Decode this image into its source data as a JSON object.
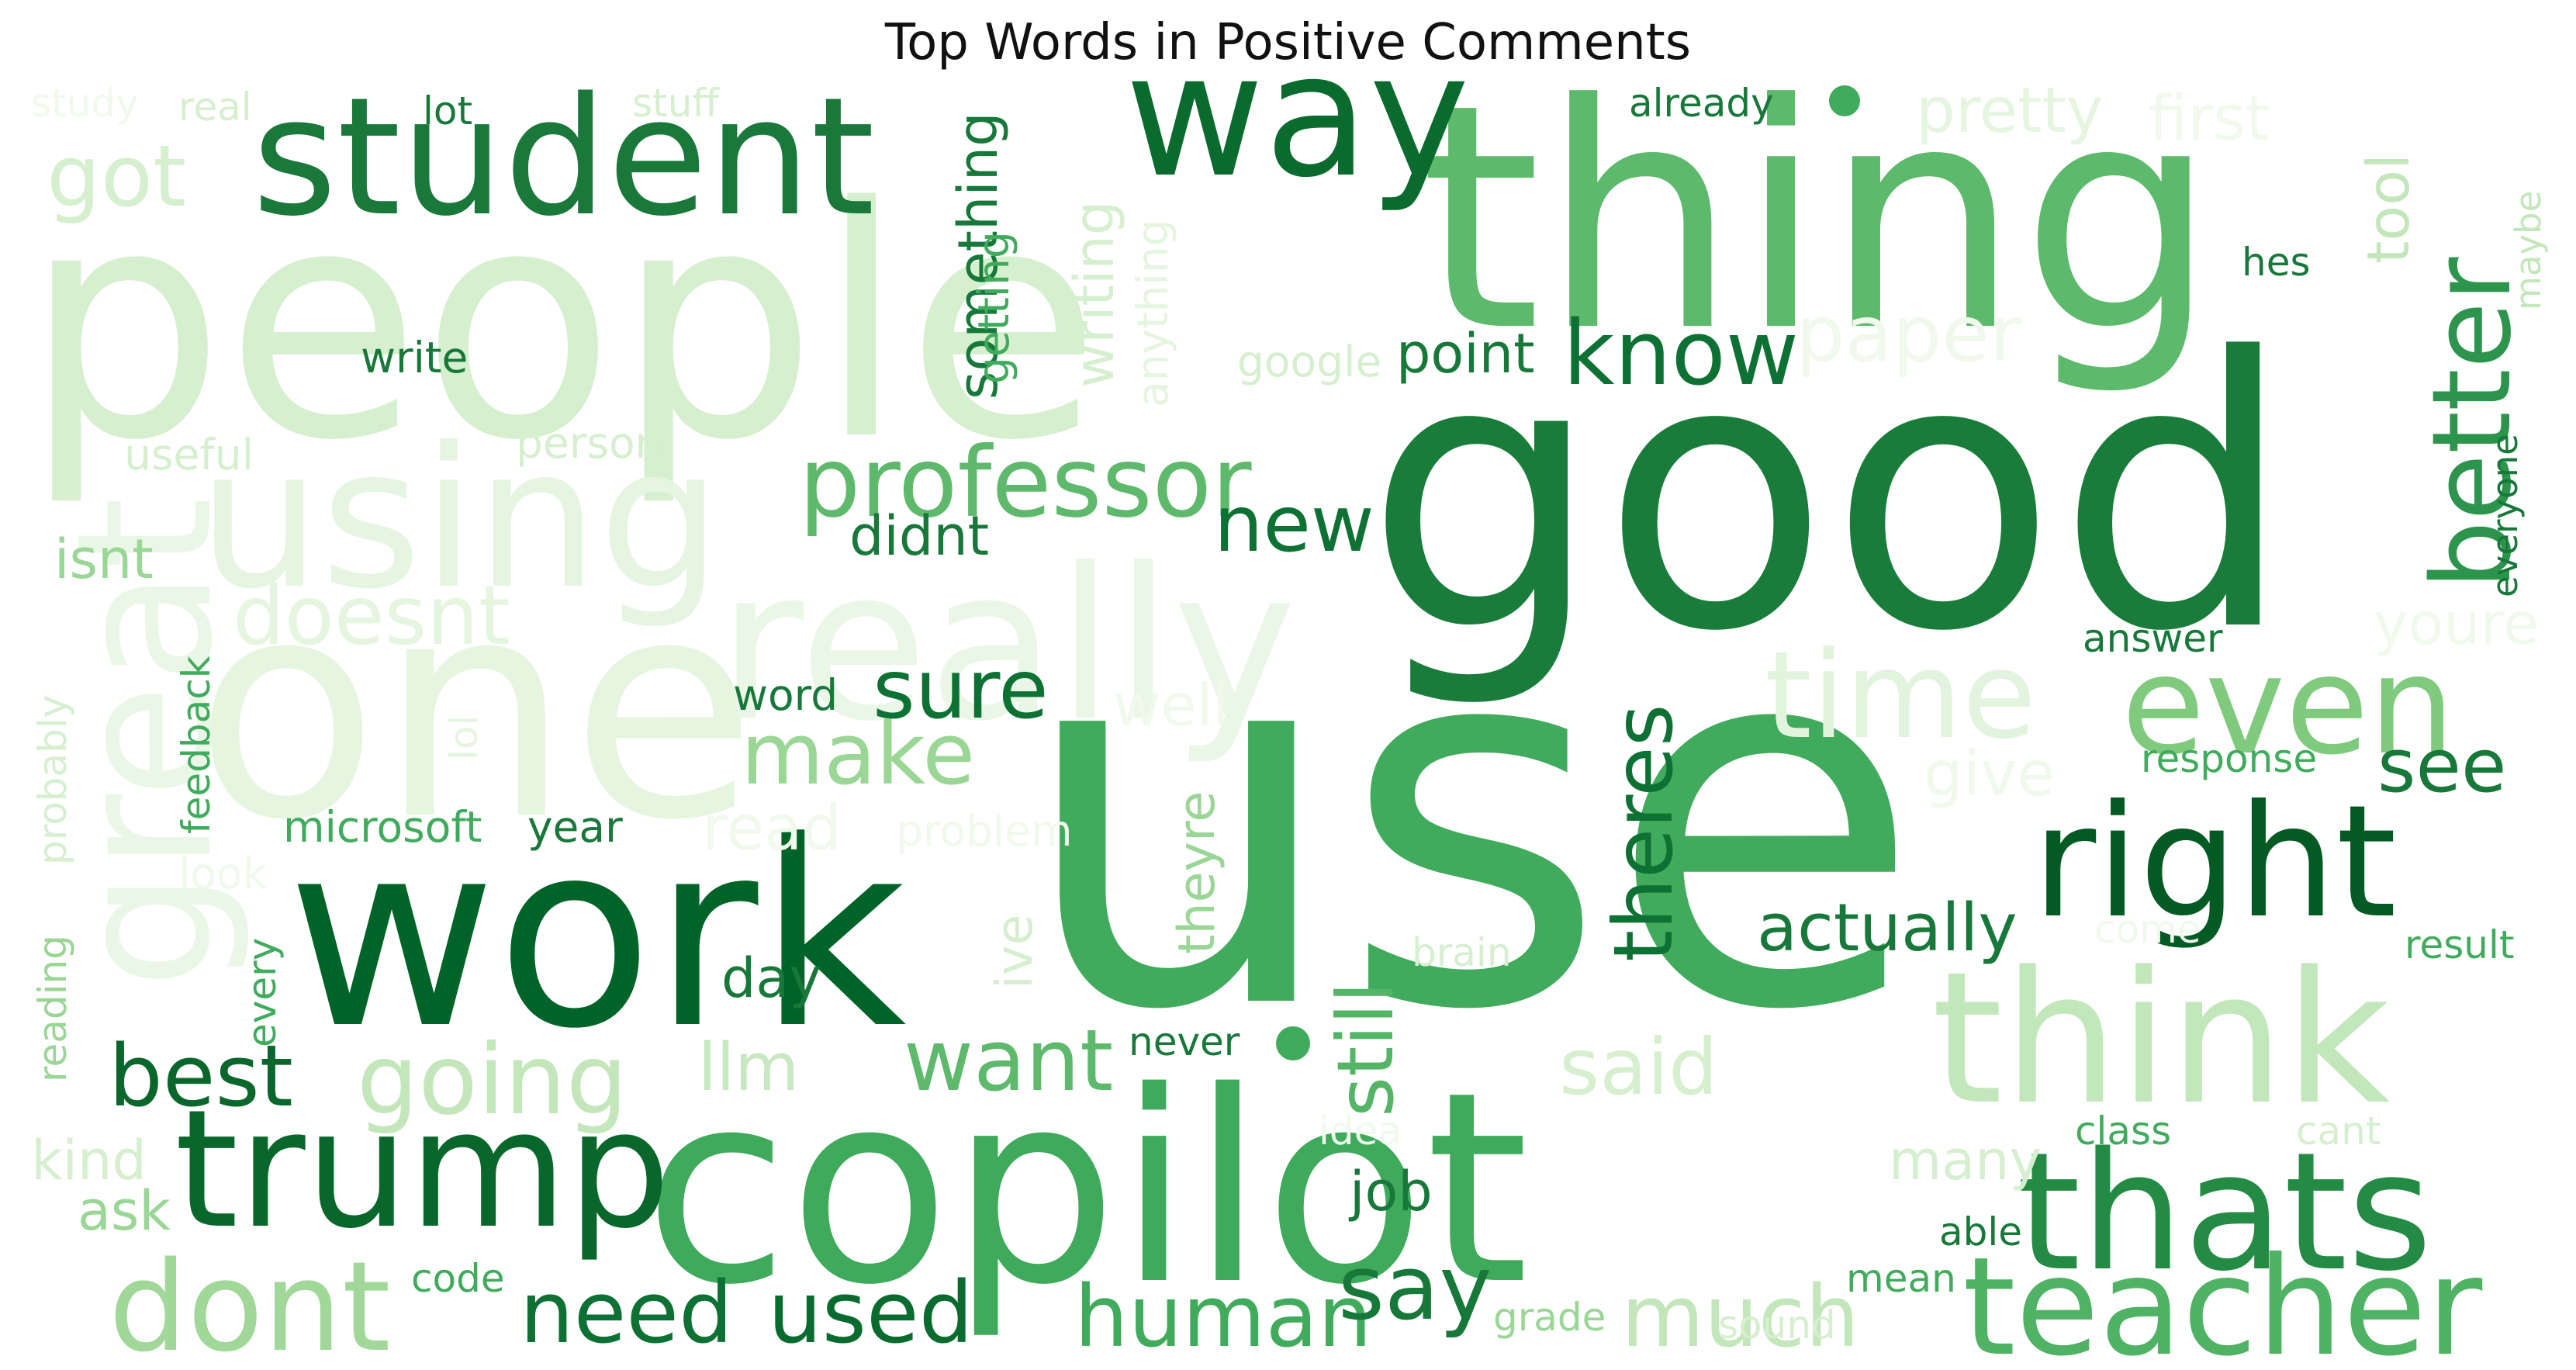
{
  "title": "Top Words in Positive Comments",
  "palette": {
    "darkest": "#00441b",
    "dark": "#006d2c",
    "mid_dark": "#238b45",
    "mid": "#41ab5d",
    "mid_light": "#74c476",
    "light": "#a1d99b",
    "lighter": "#c7e9c0",
    "lightest": "#e5f5e0"
  },
  "words": [
    {
      "text": "use",
      "color": "#41ab5d"
    },
    {
      "text": "good",
      "color": "#197c3a"
    },
    {
      "text": "people",
      "color": "#d5efcf"
    },
    {
      "text": "thing",
      "color": "#5db96b"
    },
    {
      "text": "copilot",
      "color": "#3fa95c"
    },
    {
      "text": "work",
      "color": "#006428"
    },
    {
      "text": "one",
      "color": "#e5f5e0"
    },
    {
      "text": "really",
      "color": "#eaf6e6"
    },
    {
      "text": "using",
      "color": "#e5f5e1"
    },
    {
      "text": "student",
      "color": "#19783a"
    },
    {
      "text": "way",
      "color": "#0b6b2e"
    },
    {
      "text": "think",
      "color": "#c2e7bb"
    },
    {
      "text": "trump",
      "color": "#0a672b"
    },
    {
      "text": "thats",
      "color": "#248b45"
    },
    {
      "text": "right",
      "color": "#045a23"
    },
    {
      "text": "teacher",
      "color": "#4fb264"
    },
    {
      "text": "even",
      "color": "#80ca7e"
    },
    {
      "text": "dont",
      "color": "#a1d89a"
    },
    {
      "text": "great",
      "color": "#eaf7e6"
    },
    {
      "text": "time",
      "color": "#e2f4dd"
    },
    {
      "text": "better",
      "color": "#2c944c"
    },
    {
      "text": "professor",
      "color": "#5eb96c"
    },
    {
      "text": "going",
      "color": "#c3e6bb"
    },
    {
      "text": "human",
      "color": "#41ab5d"
    },
    {
      "text": "much",
      "color": "#c3e6bb"
    },
    {
      "text": "need",
      "color": "#0e7134"
    },
    {
      "text": "used",
      "color": "#0a6b2e"
    },
    {
      "text": "say",
      "color": "#17783a"
    },
    {
      "text": "know",
      "color": "#0e7134"
    },
    {
      "text": "doesnt",
      "color": "#e5f5e0"
    },
    {
      "text": "make",
      "color": "#9ad695"
    },
    {
      "text": "want",
      "color": "#5eb96c"
    },
    {
      "text": "sure",
      "color": "#0e7134"
    },
    {
      "text": "best",
      "color": "#0a672b"
    },
    {
      "text": "still",
      "color": "#55b567"
    },
    {
      "text": "theres",
      "color": "#0e7134"
    },
    {
      "text": "got",
      "color": "#d5efcf"
    },
    {
      "text": "new",
      "color": "#0e7134"
    },
    {
      "text": "said",
      "color": "#d5efcf"
    },
    {
      "text": "paper",
      "color": "#f0f9ec"
    },
    {
      "text": "see",
      "color": "#17783a"
    },
    {
      "text": "actually",
      "color": "#17783a"
    },
    {
      "text": "llm",
      "color": "#c7e8c0"
    },
    {
      "text": "something",
      "color": "#17783a"
    },
    {
      "text": "writing",
      "color": "#d5efcf"
    },
    {
      "text": "pretty",
      "color": "#e5f5e0"
    },
    {
      "text": "first",
      "color": "#f0f9ec"
    },
    {
      "text": "tool",
      "color": "#c3e6bb"
    },
    {
      "text": "youre",
      "color": "#f0f9ec"
    },
    {
      "text": "give",
      "color": "#f0f9ec"
    },
    {
      "text": "well",
      "color": "#f0f9ec"
    },
    {
      "text": "read",
      "color": "#f0f9ec"
    },
    {
      "text": "didnt",
      "color": "#17783a"
    },
    {
      "text": "isnt",
      "color": "#9ad695"
    },
    {
      "text": "point",
      "color": "#17783a"
    },
    {
      "text": "day",
      "color": "#17783a"
    },
    {
      "text": "job",
      "color": "#17783a"
    },
    {
      "text": "ask",
      "color": "#9ad695"
    },
    {
      "text": "kind",
      "color": "#d5efcf"
    },
    {
      "text": "many",
      "color": "#d5efcf"
    },
    {
      "text": "theyre",
      "color": "#9ad695"
    },
    {
      "text": "ive",
      "color": "#d5efcf"
    },
    {
      "text": "microsoft",
      "color": "#41ab5d"
    },
    {
      "text": "year",
      "color": "#17783a"
    },
    {
      "text": "write",
      "color": "#17783a"
    },
    {
      "text": "useful",
      "color": "#d5efcf"
    },
    {
      "text": "person",
      "color": "#d5efcf"
    },
    {
      "text": "google",
      "color": "#d5efcf"
    },
    {
      "text": "getting",
      "color": "#41ab5d"
    },
    {
      "text": "anything",
      "color": "#e5f5e0"
    },
    {
      "text": "word",
      "color": "#17783a"
    },
    {
      "text": "feedback",
      "color": "#41ab5d"
    },
    {
      "text": "probably",
      "color": "#d5efcf"
    },
    {
      "text": "lol",
      "color": "#e5f5e0"
    },
    {
      "text": "look",
      "color": "#f0f9ec"
    },
    {
      "text": "problem",
      "color": "#f0f9ec"
    },
    {
      "text": "every",
      "color": "#41ab5d"
    },
    {
      "text": "reading",
      "color": "#9ad695"
    },
    {
      "text": "brain",
      "color": "#d5efcf"
    },
    {
      "text": "never",
      "color": "#17783a"
    },
    {
      "text": "idea",
      "color": "#f0f9ec"
    },
    {
      "text": "code",
      "color": "#41ab5d"
    },
    {
      "text": "grade",
      "color": "#9ad695"
    },
    {
      "text": "sound",
      "color": "#d5efcf"
    },
    {
      "text": "mean",
      "color": "#41ab5d"
    },
    {
      "text": "able",
      "color": "#17783a"
    },
    {
      "text": "class",
      "color": "#41ab5d"
    },
    {
      "text": "cant",
      "color": "#d5efcf"
    },
    {
      "text": "result",
      "color": "#41ab5d"
    },
    {
      "text": "come",
      "color": "#f0f9ec"
    },
    {
      "text": "response",
      "color": "#41ab5d"
    },
    {
      "text": "answer",
      "color": "#17783a"
    },
    {
      "text": "everyone",
      "color": "#17783a"
    },
    {
      "text": "maybe",
      "color": "#c3e6bb"
    },
    {
      "text": "hes",
      "color": "#17783a"
    },
    {
      "text": "already",
      "color": "#17783a"
    },
    {
      "text": "study",
      "color": "#f0f9ec"
    },
    {
      "text": "real",
      "color": "#d5efcf"
    },
    {
      "text": "lot",
      "color": "#17783a"
    },
    {
      "text": "stuff",
      "color": "#d5efcf"
    }
  ]
}
